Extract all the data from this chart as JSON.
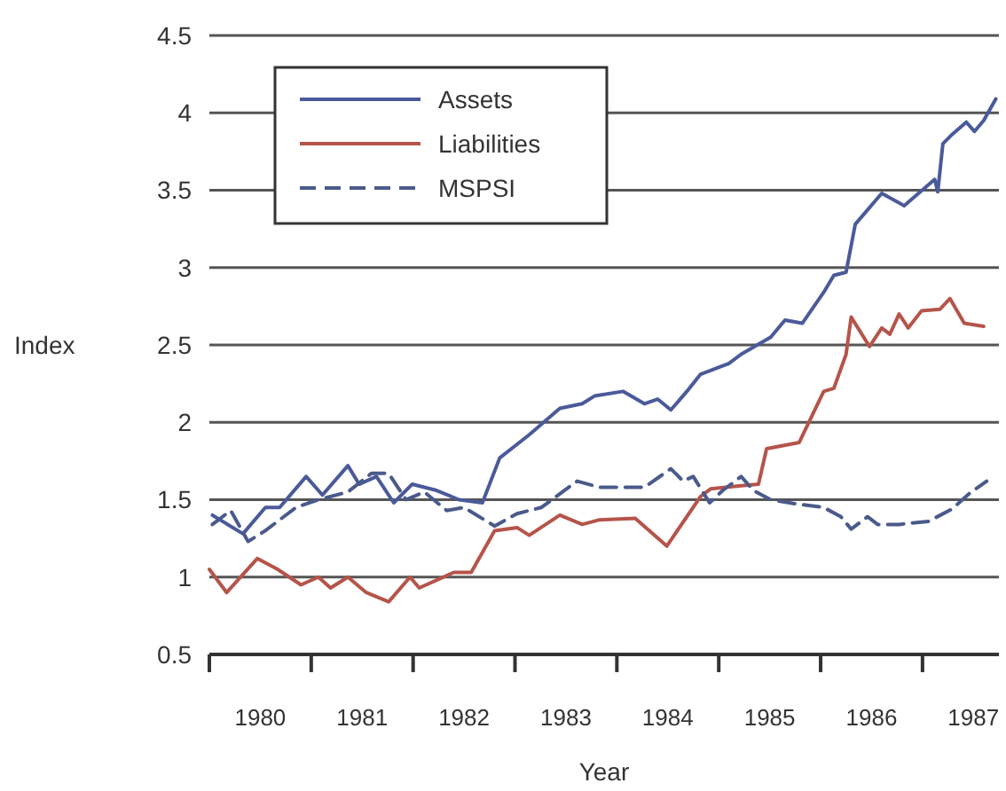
{
  "chart_data": {
    "type": "line",
    "xlabel": "Year",
    "ylabel": "Index",
    "xlim": [
      1980,
      1987.75
    ],
    "ylim": [
      0.5,
      4.5
    ],
    "xticks": [
      {
        "value": 1980,
        "label": null
      },
      {
        "value": 1980.5,
        "label": "1980"
      },
      {
        "value": 1981,
        "label": null
      },
      {
        "value": 1981.5,
        "label": "1981"
      },
      {
        "value": 1982,
        "label": null
      },
      {
        "value": 1982.5,
        "label": "1982"
      },
      {
        "value": 1983,
        "label": null
      },
      {
        "value": 1983.5,
        "label": "1983"
      },
      {
        "value": 1984,
        "label": null
      },
      {
        "value": 1984.5,
        "label": "1984"
      },
      {
        "value": 1985,
        "label": null
      },
      {
        "value": 1985.5,
        "label": "1985"
      },
      {
        "value": 1986,
        "label": null
      },
      {
        "value": 1986.5,
        "label": "1986"
      },
      {
        "value": 1987,
        "label": null
      },
      {
        "value": 1987.5,
        "label": "1987"
      }
    ],
    "yticks": [
      0.5,
      1,
      1.5,
      2,
      2.5,
      3,
      3.5,
      4,
      4.5
    ],
    "grid": "y",
    "legend": "top left",
    "marker": "none",
    "series": [
      {
        "name": "Assets",
        "color": "#4a5a9a",
        "line_style": "solid",
        "x": [
          1980.03,
          1980.33,
          1980.55,
          1980.69,
          1980.95,
          1981.11,
          1981.36,
          1981.47,
          1981.64,
          1981.81,
          1981.99,
          1982.23,
          1982.45,
          1982.68,
          1982.85,
          1983.14,
          1983.44,
          1983.66,
          1983.78,
          1984.06,
          1984.27,
          1984.4,
          1984.53,
          1984.7,
          1984.82,
          1985.1,
          1985.22,
          1985.51,
          1985.65,
          1985.82,
          1986.03,
          1986.13,
          1986.25,
          1986.34,
          1986.6,
          1986.82,
          1987.12,
          1987.15,
          1987.2,
          1987.29,
          1987.43,
          1987.51,
          1987.6,
          1987.72
        ],
        "values": [
          1.4,
          1.28,
          1.45,
          1.45,
          1.65,
          1.53,
          1.72,
          1.6,
          1.65,
          1.48,
          1.6,
          1.56,
          1.5,
          1.48,
          1.77,
          1.92,
          2.09,
          2.12,
          2.17,
          2.2,
          2.12,
          2.15,
          2.08,
          2.21,
          2.31,
          2.38,
          2.44,
          2.55,
          2.66,
          2.64,
          2.84,
          2.95,
          2.97,
          3.28,
          3.48,
          3.4,
          3.57,
          3.49,
          3.8,
          3.86,
          3.94,
          3.88,
          3.95,
          4.09
        ]
      },
      {
        "name": "Liabilities",
        "color": "#b5544a",
        "line_style": "solid",
        "x": [
          1980.0,
          1980.17,
          1980.47,
          1980.67,
          1980.9,
          1981.07,
          1981.19,
          1981.36,
          1981.54,
          1981.76,
          1981.97,
          1982.06,
          1982.4,
          1982.57,
          1982.8,
          1983.02,
          1983.14,
          1983.44,
          1983.66,
          1983.83,
          1984.18,
          1984.49,
          1984.82,
          1984.92,
          1985.22,
          1985.39,
          1985.47,
          1985.79,
          1986.03,
          1986.13,
          1986.25,
          1986.3,
          1986.48,
          1986.6,
          1986.68,
          1986.77,
          1986.86,
          1986.99,
          1987.17,
          1987.27,
          1987.41,
          1987.6
        ],
        "values": [
          1.05,
          0.9,
          1.12,
          1.05,
          0.95,
          1.0,
          0.93,
          1.0,
          0.9,
          0.84,
          1.0,
          0.93,
          1.03,
          1.03,
          1.3,
          1.32,
          1.27,
          1.4,
          1.34,
          1.37,
          1.38,
          1.2,
          1.52,
          1.57,
          1.59,
          1.6,
          1.83,
          1.87,
          2.2,
          2.22,
          2.44,
          2.68,
          2.49,
          2.61,
          2.57,
          2.7,
          2.61,
          2.72,
          2.73,
          2.8,
          2.64,
          2.62
        ]
      },
      {
        "name": "MSPSI",
        "color": "#4a5a8a",
        "line_style": "dashed",
        "x": [
          1980.03,
          1980.21,
          1980.38,
          1980.55,
          1980.85,
          1981.07,
          1981.36,
          1981.59,
          1981.76,
          1981.93,
          1982.11,
          1982.33,
          1982.5,
          1982.8,
          1983.02,
          1983.26,
          1983.61,
          1983.83,
          1984.06,
          1984.27,
          1984.53,
          1984.65,
          1984.75,
          1984.91,
          1985.04,
          1985.22,
          1985.34,
          1985.51,
          1985.79,
          1986.03,
          1986.2,
          1986.3,
          1986.46,
          1986.56,
          1986.77,
          1987.06,
          1987.29,
          1987.46,
          1987.63
        ],
        "values": [
          1.34,
          1.43,
          1.23,
          1.3,
          1.45,
          1.5,
          1.55,
          1.67,
          1.67,
          1.5,
          1.55,
          1.43,
          1.45,
          1.33,
          1.41,
          1.45,
          1.62,
          1.58,
          1.58,
          1.58,
          1.7,
          1.62,
          1.65,
          1.48,
          1.56,
          1.65,
          1.56,
          1.5,
          1.47,
          1.45,
          1.39,
          1.31,
          1.39,
          1.34,
          1.34,
          1.36,
          1.44,
          1.54,
          1.62
        ]
      }
    ]
  }
}
